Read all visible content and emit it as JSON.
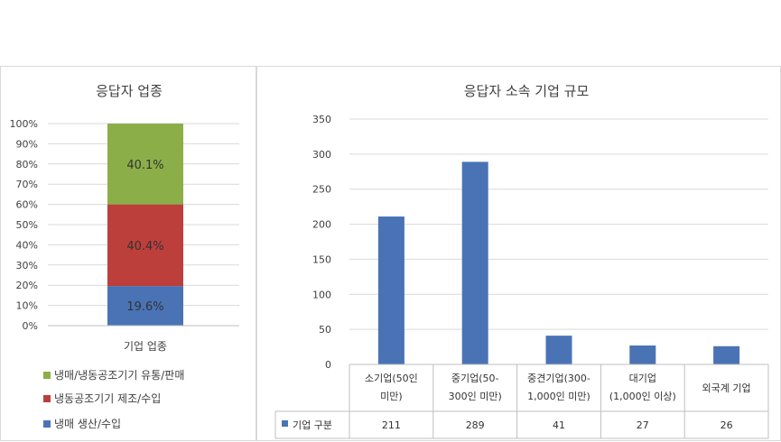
{
  "left_chart": {
    "title": "응답자 업종",
    "y_ticks": [
      "100%",
      "90%",
      "80%",
      "70%",
      "60%",
      "50%",
      "40%",
      "30%",
      "20%",
      "10%",
      "0%"
    ],
    "category": "기업 업종",
    "colors": {
      "retail": "#8cae48",
      "manufacture": "#bd3f3b",
      "production": "#4a73b5"
    },
    "legend": [
      {
        "label": "냉매/냉동공조기기 유통/판매",
        "color": "#8cae48"
      },
      {
        "label": "냉동공조기기 제조/수입",
        "color": "#bd3f3b"
      },
      {
        "label": "냉매 생산/수입",
        "color": "#4a73b5"
      }
    ]
  },
  "right_chart": {
    "title": "응답자 소속 기업 규모",
    "y_ticks": [
      "350",
      "300",
      "250",
      "200",
      "150",
      "100",
      "50",
      "0"
    ],
    "categories_line1": [
      "소기업(50인",
      "중기업(50-",
      "중견기업(300-",
      "대기업",
      "외국계 기업"
    ],
    "categories_line2": [
      "미만)",
      "300인 미만)",
      "1,000인 미만)",
      "(1,000인 이상)",
      ""
    ],
    "table_series_label": "기업 구분",
    "table_values": [
      "211",
      "289",
      "41",
      "27",
      "26"
    ],
    "bar_color": "#4a73b5"
  },
  "chart_data": [
    {
      "type": "bar",
      "stacked": true,
      "title": "응답자 업종",
      "categories": [
        "기업 업종"
      ],
      "series": [
        {
          "name": "냉매 생산/수입",
          "values": [
            19.6
          ],
          "label": "19.6%"
        },
        {
          "name": "냉동공조기기 제조/수입",
          "values": [
            40.4
          ],
          "label": "40.4%"
        },
        {
          "name": "냉매/냉동공조기기 유통/판매",
          "values": [
            40.1
          ],
          "label": "40.1%"
        }
      ],
      "ylim": [
        0,
        100
      ],
      "y_unit": "%",
      "grid": true,
      "legend_position": "bottom"
    },
    {
      "type": "bar",
      "title": "응답자 소속 기업 규모",
      "categories": [
        "소기업(50인 미만)",
        "중기업(50-300인 미만)",
        "중견기업(300-1,000인 미만)",
        "대기업(1,000인 이상)",
        "외국계 기업"
      ],
      "series": [
        {
          "name": "기업 구분",
          "values": [
            211,
            289,
            41,
            27,
            26
          ]
        }
      ],
      "ylim": [
        0,
        350
      ],
      "grid": true,
      "legend_position": "bottom (data table)"
    }
  ]
}
